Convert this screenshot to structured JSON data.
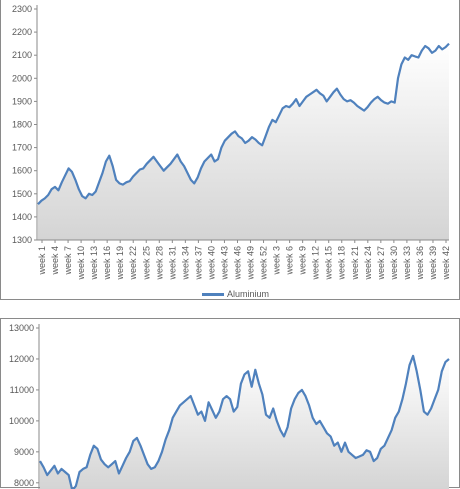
{
  "chart_data": [
    {
      "type": "area",
      "title": "",
      "xlabel": "",
      "ylabel": "",
      "ylim": [
        1300,
        2300
      ],
      "yticks": [
        "1300",
        "1400",
        "1500",
        "1600",
        "1700",
        "1800",
        "1900",
        "2000",
        "2100",
        "2200",
        "2300"
      ],
      "xticks": [
        "week  1",
        "week  4",
        "week  7",
        "week  10",
        "week  13",
        "week  16",
        "week  19",
        "week  22",
        "week  25",
        "week  28",
        "week  31",
        "week  34",
        "week  37",
        "week  40",
        "week  43",
        "week  46",
        "week  49",
        "week  52",
        "week  3",
        "week  6",
        "week  9",
        "week  12",
        "week  15",
        "week  18",
        "week  21",
        "week  24",
        "week  27",
        "week  30",
        "week  33",
        "week  36",
        "week  39",
        "week  42"
      ],
      "grid": false,
      "legend": "bottom",
      "series": [
        {
          "name": "Aluminium",
          "color": "#4f81bd",
          "values": [
            1455,
            1470,
            1480,
            1495,
            1520,
            1530,
            1515,
            1550,
            1580,
            1610,
            1595,
            1560,
            1520,
            1490,
            1480,
            1500,
            1495,
            1510,
            1550,
            1590,
            1640,
            1665,
            1620,
            1560,
            1545,
            1540,
            1550,
            1555,
            1575,
            1590,
            1605,
            1610,
            1630,
            1645,
            1660,
            1640,
            1620,
            1600,
            1615,
            1630,
            1650,
            1670,
            1640,
            1620,
            1590,
            1560,
            1545,
            1570,
            1610,
            1640,
            1655,
            1670,
            1640,
            1650,
            1700,
            1730,
            1745,
            1760,
            1770,
            1750,
            1740,
            1720,
            1730,
            1745,
            1735,
            1720,
            1710,
            1750,
            1790,
            1820,
            1810,
            1840,
            1870,
            1880,
            1875,
            1890,
            1910,
            1880,
            1900,
            1920,
            1930,
            1940,
            1950,
            1935,
            1925,
            1900,
            1920,
            1940,
            1955,
            1930,
            1910,
            1900,
            1905,
            1895,
            1880,
            1870,
            1860,
            1875,
            1895,
            1910,
            1920,
            1905,
            1895,
            1890,
            1900,
            1895,
            2000,
            2060,
            2090,
            2080,
            2100,
            2095,
            2090,
            2120,
            2140,
            2130,
            2110,
            2120,
            2140,
            2125,
            2135,
            2150
          ]
        }
      ]
    },
    {
      "type": "area",
      "title": "",
      "xlabel": "",
      "ylabel": "",
      "ylim": [
        7800,
        13000
      ],
      "yticks": [
        "8000",
        "9000",
        "10000",
        "11000",
        "12000",
        "13000"
      ],
      "grid": false,
      "series": [
        {
          "color": "#4f81bd",
          "values": [
            8700,
            8500,
            8250,
            8400,
            8550,
            8300,
            8450,
            8350,
            8250,
            7750,
            7900,
            8350,
            8450,
            8500,
            8900,
            9200,
            9100,
            8750,
            8600,
            8500,
            8600,
            8700,
            8300,
            8550,
            8800,
            9000,
            9350,
            9450,
            9200,
            8900,
            8600,
            8450,
            8500,
            8700,
            9000,
            9400,
            9700,
            10100,
            10300,
            10500,
            10600,
            10700,
            10800,
            10500,
            10200,
            10300,
            10000,
            10600,
            10350,
            10100,
            10300,
            10700,
            10800,
            10700,
            10300,
            10450,
            11200,
            11500,
            11600,
            11100,
            11650,
            11200,
            10850,
            10200,
            10100,
            10400,
            10000,
            9700,
            9500,
            9800,
            10400,
            10700,
            10900,
            11000,
            10800,
            10500,
            10100,
            9900,
            10000,
            9800,
            9600,
            9500,
            9200,
            9300,
            9000,
            9300,
            9000,
            8900,
            8800,
            8850,
            8900,
            9050,
            9000,
            8700,
            8800,
            9100,
            9200,
            9450,
            9700,
            10100,
            10300,
            10700,
            11200,
            11800,
            12100,
            11600,
            11000,
            10300,
            10200,
            10400,
            10700,
            11000,
            11600,
            11900,
            12000
          ]
        }
      ]
    }
  ]
}
